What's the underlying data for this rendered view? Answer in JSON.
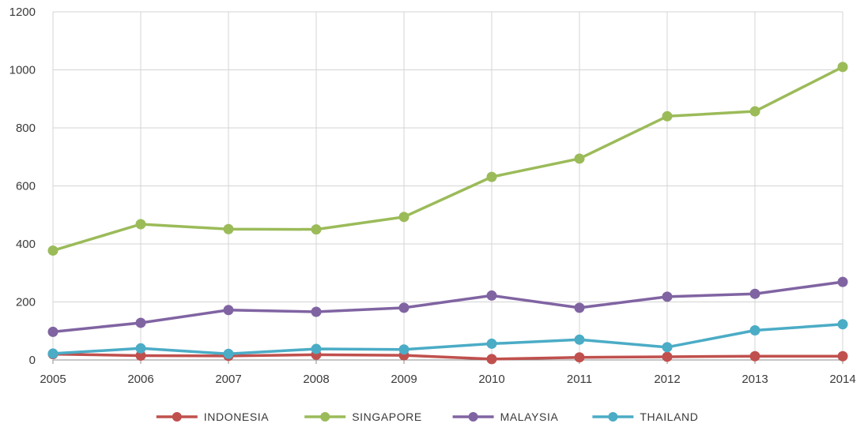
{
  "chart_data": {
    "type": "line",
    "title": "",
    "xlabel": "",
    "ylabel": "",
    "x": [
      "2005",
      "2006",
      "2007",
      "2008",
      "2009",
      "2010",
      "2011",
      "2012",
      "2013",
      "2014"
    ],
    "ylim": [
      0,
      1200
    ],
    "yticks": [
      0,
      200,
      400,
      600,
      800,
      1000,
      1200
    ],
    "ytick_labels": [
      "0",
      "200",
      "400",
      "600",
      "800",
      "1000",
      "1200"
    ],
    "grid": true,
    "legend_position": "bottom",
    "series": [
      {
        "name": "INDONESIA",
        "color": "#c0504d",
        "values": [
          20,
          15,
          14,
          18,
          16,
          3,
          9,
          11,
          13,
          13
        ]
      },
      {
        "name": "SINGAPORE",
        "color": "#9bbb59",
        "values": [
          377,
          468,
          451,
          450,
          493,
          631,
          694,
          840,
          857,
          1010
        ]
      },
      {
        "name": "MALAYSIA",
        "color": "#8064a2",
        "values": [
          97,
          128,
          172,
          166,
          180,
          222,
          180,
          218,
          228,
          269
        ]
      },
      {
        "name": "THAILAND",
        "color": "#4bacc6",
        "values": [
          22,
          40,
          21,
          38,
          36,
          56,
          70,
          44,
          102,
          123
        ]
      }
    ]
  }
}
